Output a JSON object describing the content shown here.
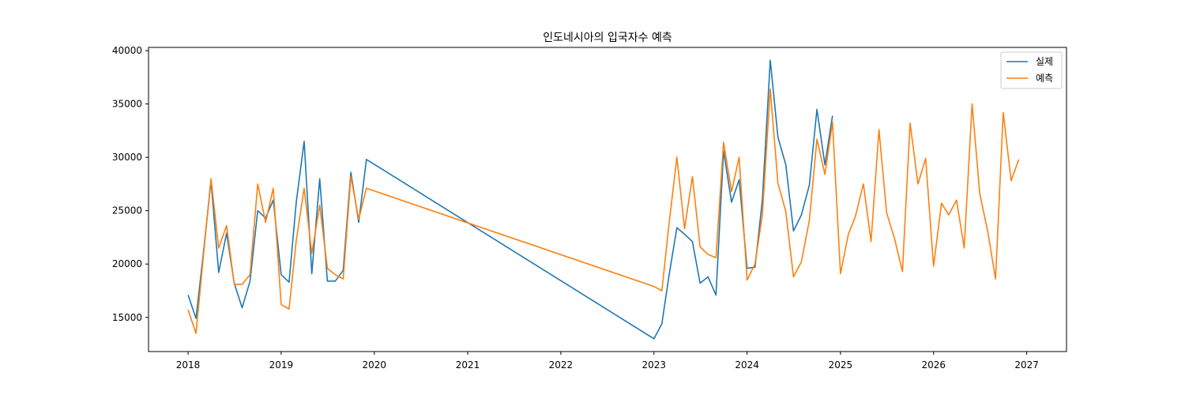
{
  "chart_data": {
    "type": "line",
    "title": "인도네시아의 입국자수 예측",
    "xlabel": "",
    "ylabel": "",
    "xlim": [
      "2017-07-30",
      "2027-06-06"
    ],
    "ylim": [
      11800,
      40300
    ],
    "x_ticks": [
      {
        "date": "2018-01-01",
        "label": "2018"
      },
      {
        "date": "2019-01-01",
        "label": "2019"
      },
      {
        "date": "2020-01-01",
        "label": "2020"
      },
      {
        "date": "2021-01-01",
        "label": "2021"
      },
      {
        "date": "2022-01-01",
        "label": "2022"
      },
      {
        "date": "2023-01-01",
        "label": "2023"
      },
      {
        "date": "2024-01-01",
        "label": "2024"
      },
      {
        "date": "2025-01-01",
        "label": "2025"
      },
      {
        "date": "2026-01-01",
        "label": "2026"
      },
      {
        "date": "2027-01-01",
        "label": "2027"
      }
    ],
    "y_ticks": [
      {
        "value": 15000,
        "label": "15000"
      },
      {
        "value": 20000,
        "label": "20000"
      },
      {
        "value": 25000,
        "label": "25000"
      },
      {
        "value": 30000,
        "label": "30000"
      },
      {
        "value": 35000,
        "label": "35000"
      },
      {
        "value": 40000,
        "label": "40000"
      }
    ],
    "grid": false,
    "legend_position": "top-right",
    "series": [
      {
        "name": "실제",
        "color": "#1f77b4",
        "points": [
          [
            "2018-01",
            17100
          ],
          [
            "2018-02",
            14900
          ],
          [
            "2018-03",
            20800
          ],
          [
            "2018-04",
            27800
          ],
          [
            "2018-05",
            19200
          ],
          [
            "2018-06",
            22900
          ],
          [
            "2018-07",
            18200
          ],
          [
            "2018-08",
            15900
          ],
          [
            "2018-09",
            18400
          ],
          [
            "2018-10",
            25000
          ],
          [
            "2018-11",
            24300
          ],
          [
            "2018-12",
            26000
          ],
          [
            "2019-01",
            19000
          ],
          [
            "2019-02",
            18300
          ],
          [
            "2019-03",
            25800
          ],
          [
            "2019-04",
            31500
          ],
          [
            "2019-05",
            19100
          ],
          [
            "2019-06",
            28000
          ],
          [
            "2019-07",
            18400
          ],
          [
            "2019-08",
            18400
          ],
          [
            "2019-09",
            19400
          ],
          [
            "2019-10",
            28600
          ],
          [
            "2019-11",
            23900
          ],
          [
            "2019-12",
            29800
          ],
          [
            "2023-01",
            13000
          ],
          [
            "2023-02",
            14400
          ],
          [
            "2023-03",
            18900
          ],
          [
            "2023-04",
            23400
          ],
          [
            "2023-05",
            22800
          ],
          [
            "2023-06",
            22100
          ],
          [
            "2023-07",
            18200
          ],
          [
            "2023-08",
            18800
          ],
          [
            "2023-09",
            17100
          ],
          [
            "2023-10",
            30600
          ],
          [
            "2023-11",
            25800
          ],
          [
            "2023-12",
            27900
          ],
          [
            "2024-01",
            19600
          ],
          [
            "2024-02",
            19700
          ],
          [
            "2024-03",
            26000
          ],
          [
            "2024-04",
            39100
          ],
          [
            "2024-05",
            31900
          ],
          [
            "2024-06",
            29300
          ],
          [
            "2024-07",
            23100
          ],
          [
            "2024-08",
            24600
          ],
          [
            "2024-09",
            27400
          ],
          [
            "2024-10",
            34500
          ],
          [
            "2024-11",
            29300
          ],
          [
            "2024-12",
            33900
          ]
        ]
      },
      {
        "name": "예측",
        "color": "#ff7f0e",
        "points": [
          [
            "2018-01",
            15700
          ],
          [
            "2018-02",
            13500
          ],
          [
            "2018-03",
            20500
          ],
          [
            "2018-04",
            28000
          ],
          [
            "2018-05",
            21500
          ],
          [
            "2018-06",
            23600
          ],
          [
            "2018-07",
            18100
          ],
          [
            "2018-08",
            18100
          ],
          [
            "2018-09",
            19000
          ],
          [
            "2018-10",
            27500
          ],
          [
            "2018-11",
            23900
          ],
          [
            "2018-12",
            27100
          ],
          [
            "2019-01",
            16200
          ],
          [
            "2019-02",
            15800
          ],
          [
            "2019-03",
            22200
          ],
          [
            "2019-04",
            27100
          ],
          [
            "2019-05",
            21000
          ],
          [
            "2019-06",
            25500
          ],
          [
            "2019-07",
            19600
          ],
          [
            "2019-08",
            19000
          ],
          [
            "2019-09",
            18600
          ],
          [
            "2019-10",
            28200
          ],
          [
            "2019-11",
            24200
          ],
          [
            "2019-12",
            27100
          ],
          [
            "2023-01",
            17900
          ],
          [
            "2023-02",
            17500
          ],
          [
            "2023-03",
            23700
          ],
          [
            "2023-04",
            30000
          ],
          [
            "2023-05",
            23300
          ],
          [
            "2023-06",
            28200
          ],
          [
            "2023-07",
            21600
          ],
          [
            "2023-08",
            20900
          ],
          [
            "2023-09",
            20600
          ],
          [
            "2023-10",
            31400
          ],
          [
            "2023-11",
            26800
          ],
          [
            "2023-12",
            30000
          ],
          [
            "2024-01",
            18500
          ],
          [
            "2024-02",
            20000
          ],
          [
            "2024-03",
            24600
          ],
          [
            "2024-04",
            36400
          ],
          [
            "2024-05",
            27600
          ],
          [
            "2024-06",
            24900
          ],
          [
            "2024-07",
            18800
          ],
          [
            "2024-08",
            20200
          ],
          [
            "2024-09",
            24100
          ],
          [
            "2024-10",
            31700
          ],
          [
            "2024-11",
            28400
          ],
          [
            "2024-12",
            33300
          ],
          [
            "2025-01",
            19100
          ],
          [
            "2025-02",
            22800
          ],
          [
            "2025-03",
            24500
          ],
          [
            "2025-04",
            27500
          ],
          [
            "2025-05",
            22100
          ],
          [
            "2025-06",
            32600
          ],
          [
            "2025-07",
            24800
          ],
          [
            "2025-08",
            22400
          ],
          [
            "2025-09",
            19300
          ],
          [
            "2025-10",
            33200
          ],
          [
            "2025-11",
            27500
          ],
          [
            "2025-12",
            29900
          ],
          [
            "2026-01",
            19800
          ],
          [
            "2026-02",
            25700
          ],
          [
            "2026-03",
            24600
          ],
          [
            "2026-04",
            26000
          ],
          [
            "2026-05",
            21500
          ],
          [
            "2026-06",
            35000
          ],
          [
            "2026-07",
            26600
          ],
          [
            "2026-08",
            23100
          ],
          [
            "2026-09",
            18600
          ],
          [
            "2026-10",
            34200
          ],
          [
            "2026-11",
            27800
          ],
          [
            "2026-12",
            29800
          ]
        ]
      }
    ]
  }
}
